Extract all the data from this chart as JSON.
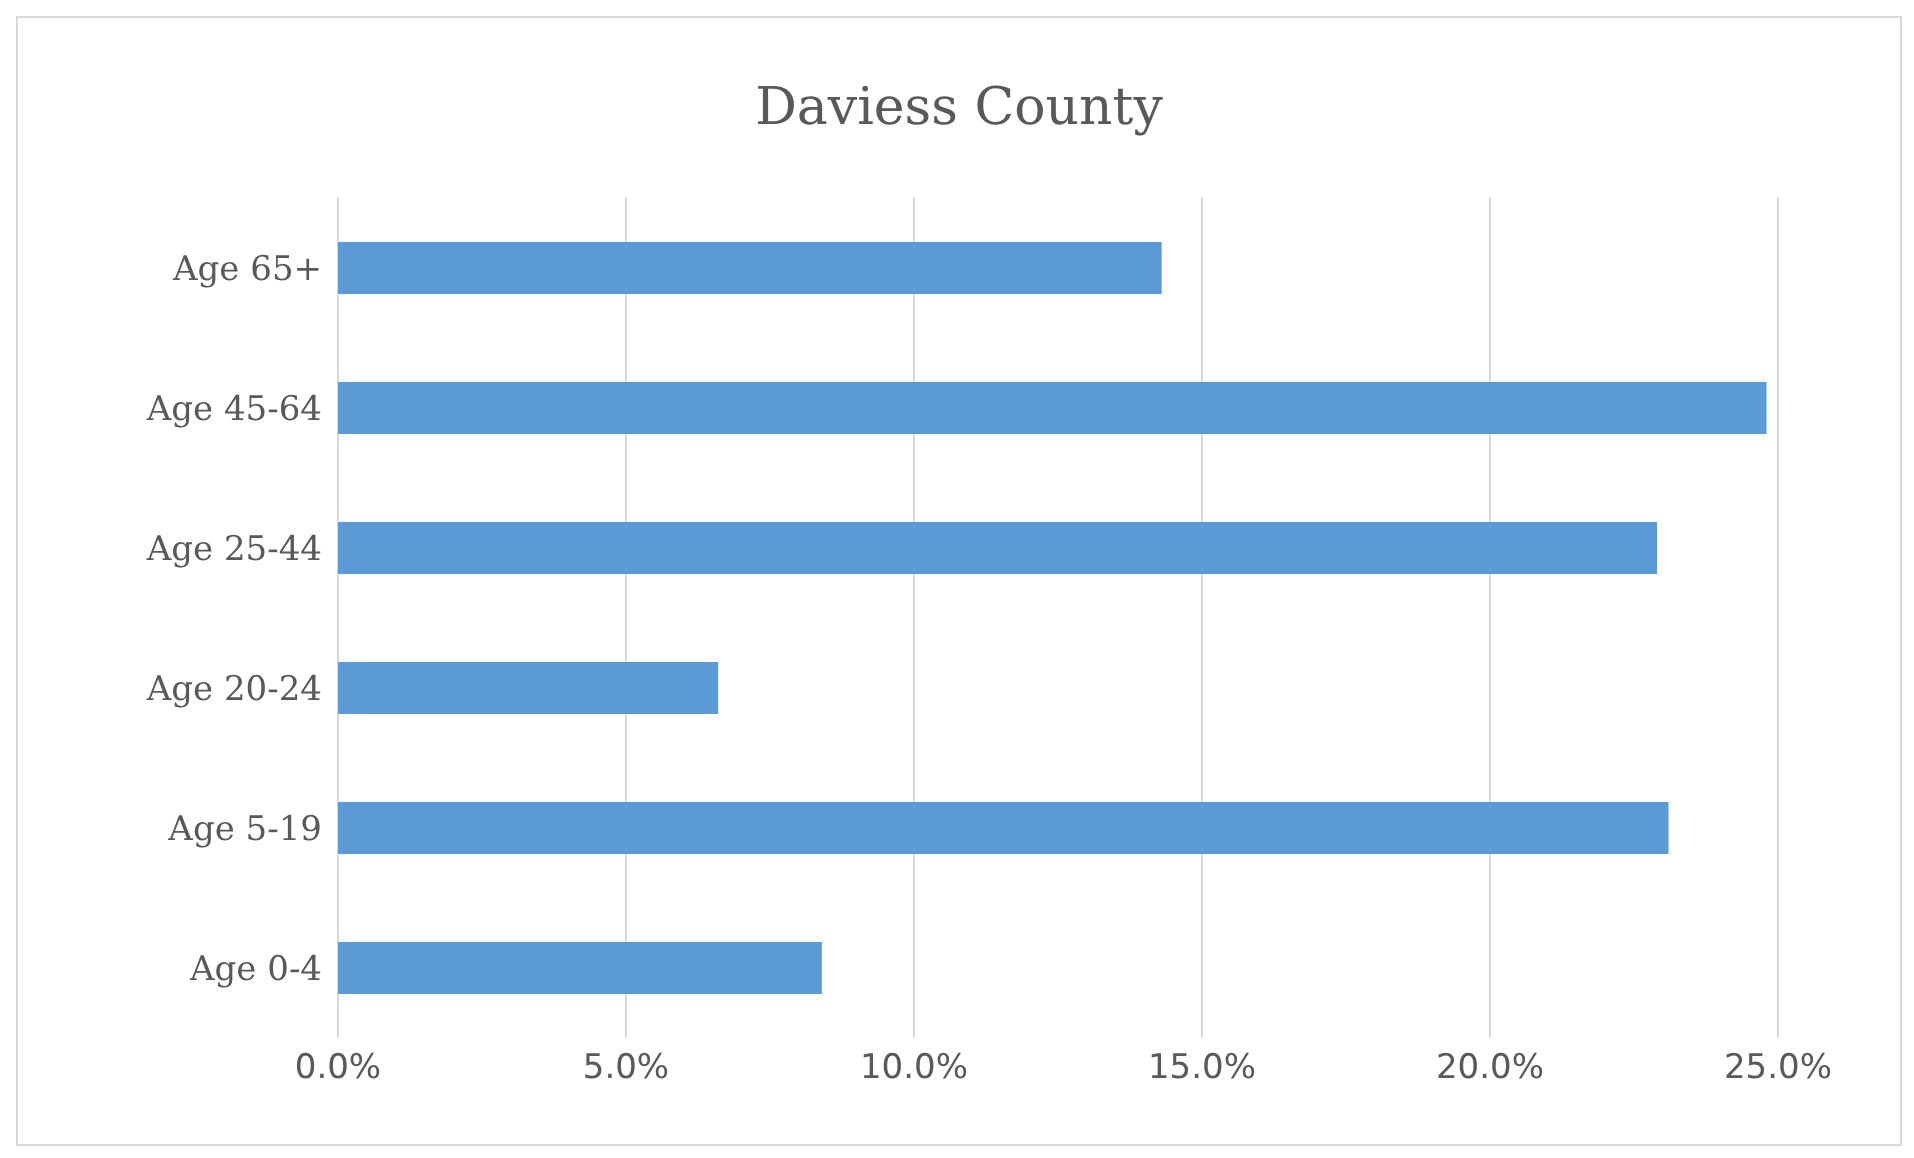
{
  "chart_data": {
    "type": "bar",
    "orientation": "horizontal",
    "title": "Daviess County",
    "categories": [
      "Age 65+",
      "Age 45-64",
      "Age 25-44",
      "Age 20-24",
      "Age 5-19",
      "Age 0-4"
    ],
    "values": [
      14.3,
      24.8,
      22.9,
      6.6,
      23.1,
      8.4
    ],
    "color": "#5b9bd5",
    "xlim": [
      0,
      25
    ],
    "xticks": [
      {
        "value": 0,
        "label": "0.0%"
      },
      {
        "value": 5,
        "label": "5.0%"
      },
      {
        "value": 10,
        "label": "10.0%"
      },
      {
        "value": 15,
        "label": "15.0%"
      },
      {
        "value": 20,
        "label": "20.0%"
      },
      {
        "value": 25,
        "label": "25.0%"
      }
    ],
    "grid": "x"
  }
}
